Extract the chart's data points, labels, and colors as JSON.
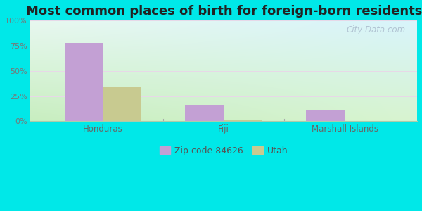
{
  "title": "Most common places of birth for foreign-born residents",
  "categories": [
    "Honduras",
    "Fiji",
    "Marshall Islands"
  ],
  "zip_values": [
    78,
    16,
    11
  ],
  "utah_values": [
    34,
    1,
    0.5
  ],
  "zip_color": "#c3a0d4",
  "utah_color": "#c8ca90",
  "outer_bg": "#00e8e8",
  "bg_color_bottom_left": "#c8eec0",
  "bg_color_top_right": "#e8f8f0",
  "bg_color_top_far_right": "#d0f0f8",
  "ylim": [
    0,
    100
  ],
  "yticks": [
    0,
    25,
    50,
    75,
    100
  ],
  "ytick_labels": [
    "0%",
    "25%",
    "50%",
    "75%",
    "100%"
  ],
  "bar_width": 0.32,
  "title_fontsize": 13,
  "legend_labels": [
    "Zip code 84626",
    "Utah"
  ],
  "watermark": "City-Data.com",
  "grid_color": "#ddeedc",
  "separator_color": "#bbddbb"
}
